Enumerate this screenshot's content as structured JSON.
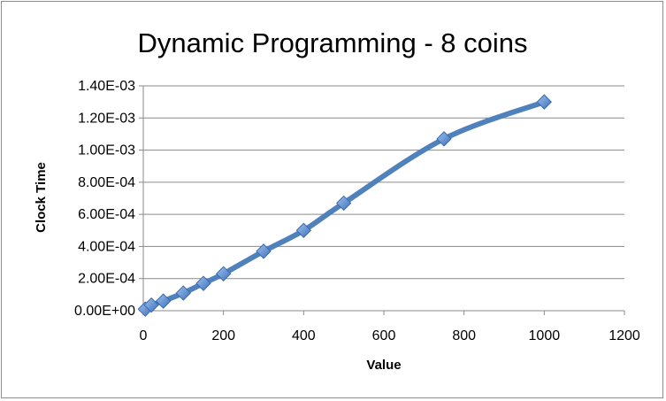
{
  "chart_data": {
    "type": "line",
    "title": "Dynamic Programming - 8 coins",
    "xlabel": "Value",
    "ylabel": "Clock Time",
    "xlim": [
      0,
      1200
    ],
    "ylim": [
      0,
      0.0014
    ],
    "x_ticks": [
      "0",
      "200",
      "400",
      "600",
      "800",
      "1000",
      "1200"
    ],
    "x_tick_values": [
      0,
      200,
      400,
      600,
      800,
      1000,
      1200
    ],
    "y_ticks": [
      "0.00E+00",
      "2.00E-04",
      "4.00E-04",
      "6.00E-04",
      "8.00E-04",
      "1.00E-03",
      "1.20E-03",
      "1.40E-03"
    ],
    "y_tick_values": [
      0,
      0.0002,
      0.0004,
      0.0006,
      0.0008,
      0.001,
      0.0012,
      0.0014
    ],
    "grid": "horizontal",
    "legend": "none",
    "series": [
      {
        "color": "#4f81bd",
        "marker_color": "#6d9de0",
        "x": [
          5,
          20,
          50,
          100,
          150,
          200,
          300,
          400,
          500,
          750,
          1000
        ],
        "y": [
          1e-05,
          3.5e-05,
          6e-05,
          0.00011,
          0.00017,
          0.00023,
          0.00037,
          0.0005,
          0.00067,
          0.00107,
          0.0013
        ]
      }
    ]
  }
}
